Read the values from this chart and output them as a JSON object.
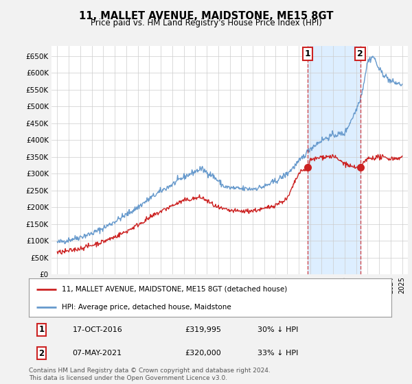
{
  "title": "11, MALLET AVENUE, MAIDSTONE, ME15 8GT",
  "subtitle": "Price paid vs. HM Land Registry's House Price Index (HPI)",
  "ylim": [
    0,
    680000
  ],
  "yticks": [
    0,
    50000,
    100000,
    150000,
    200000,
    250000,
    300000,
    350000,
    400000,
    450000,
    500000,
    550000,
    600000,
    650000
  ],
  "ytick_labels": [
    "£0",
    "£50K",
    "£100K",
    "£150K",
    "£200K",
    "£250K",
    "£300K",
    "£350K",
    "£400K",
    "£450K",
    "£500K",
    "£550K",
    "£600K",
    "£650K"
  ],
  "xlim_start": 1994.5,
  "xlim_end": 2025.5,
  "background_color": "#f2f2f2",
  "plot_bg_color": "#ffffff",
  "grid_color": "#cccccc",
  "hpi_color": "#6699cc",
  "price_color": "#cc2222",
  "shade_color": "#ddeeff",
  "sale1_x": 2016.8,
  "sale1_y": 319995,
  "sale2_x": 2021.35,
  "sale2_y": 320000,
  "annotation1_date": "17-OCT-2016",
  "annotation1_price": "£319,995",
  "annotation1_hpi": "30% ↓ HPI",
  "annotation2_date": "07-MAY-2021",
  "annotation2_price": "£320,000",
  "annotation2_hpi": "33% ↓ HPI",
  "legend_line1": "11, MALLET AVENUE, MAIDSTONE, ME15 8GT (detached house)",
  "legend_line2": "HPI: Average price, detached house, Maidstone",
  "footer": "Contains HM Land Registry data © Crown copyright and database right 2024.\nThis data is licensed under the Open Government Licence v3.0."
}
